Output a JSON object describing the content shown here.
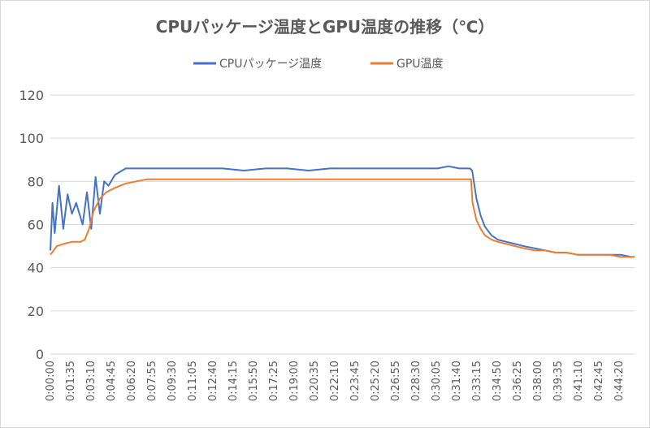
{
  "chart_data": {
    "type": "line",
    "title": "CPUパッケージ温度とGPU温度の推移（℃）",
    "xlabel": "",
    "ylabel": "",
    "ylim": [
      0,
      120
    ],
    "yticks": [
      0,
      20,
      40,
      60,
      80,
      100,
      120
    ],
    "grid": true,
    "legend_position": "top",
    "x_unit": "seconds",
    "x_range": [
      0,
      2715
    ],
    "x_tick_labels": [
      "0:00:00",
      "0:01:35",
      "0:03:10",
      "0:04:45",
      "0:06:20",
      "0:07:55",
      "0:09:30",
      "0:11:05",
      "0:12:40",
      "0:14:15",
      "0:15:50",
      "0:17:25",
      "0:19:00",
      "0:20:35",
      "0:22:10",
      "0:23:45",
      "0:25:20",
      "0:26:55",
      "0:28:30",
      "0:30:05",
      "0:31:40",
      "0:33:15",
      "0:34:50",
      "0:36:25",
      "0:38:00",
      "0:39:35",
      "0:41:10",
      "0:42:45",
      "0:44:20"
    ],
    "series": [
      {
        "name": "CPUパッケージ温度",
        "color": "#4472c4",
        "x": [
          0,
          10,
          20,
          40,
          60,
          80,
          100,
          120,
          150,
          170,
          190,
          210,
          230,
          250,
          270,
          300,
          350,
          400,
          450,
          500,
          600,
          700,
          800,
          900,
          1000,
          1100,
          1200,
          1300,
          1400,
          1500,
          1600,
          1700,
          1800,
          1850,
          1900,
          1930,
          1950,
          1960,
          1980,
          2000,
          2020,
          2050,
          2080,
          2120,
          2160,
          2200,
          2250,
          2300,
          2350,
          2400,
          2450,
          2500,
          2550,
          2600,
          2650,
          2700,
          2715
        ],
        "y": [
          48,
          70,
          56,
          78,
          58,
          74,
          65,
          70,
          60,
          75,
          58,
          82,
          65,
          80,
          78,
          83,
          86,
          86,
          86,
          86,
          86,
          86,
          86,
          85,
          86,
          86,
          85,
          86,
          86,
          86,
          86,
          86,
          86,
          87,
          86,
          86,
          86,
          85,
          72,
          64,
          59,
          55,
          53,
          52,
          51,
          50,
          49,
          48,
          47,
          47,
          46,
          46,
          46,
          46,
          46,
          45,
          45
        ]
      },
      {
        "name": "GPU温度",
        "color": "#ed7d31",
        "x": [
          0,
          15,
          30,
          60,
          100,
          140,
          160,
          180,
          200,
          230,
          260,
          300,
          350,
          400,
          450,
          500,
          600,
          800,
          1000,
          1200,
          1400,
          1600,
          1800,
          1900,
          1955,
          1962,
          1980,
          2000,
          2020,
          2050,
          2080,
          2120,
          2160,
          2200,
          2250,
          2300,
          2350,
          2400,
          2450,
          2500,
          2550,
          2600,
          2650,
          2700,
          2715
        ],
        "y": [
          46,
          48,
          50,
          51,
          52,
          52,
          53,
          58,
          66,
          72,
          75,
          77,
          79,
          80,
          81,
          81,
          81,
          81,
          81,
          81,
          81,
          81,
          81,
          81,
          81,
          70,
          62,
          58,
          55,
          53,
          52,
          51,
          50,
          49,
          48,
          48,
          47,
          47,
          46,
          46,
          46,
          46,
          45,
          45,
          45
        ]
      }
    ],
    "annotations": []
  }
}
